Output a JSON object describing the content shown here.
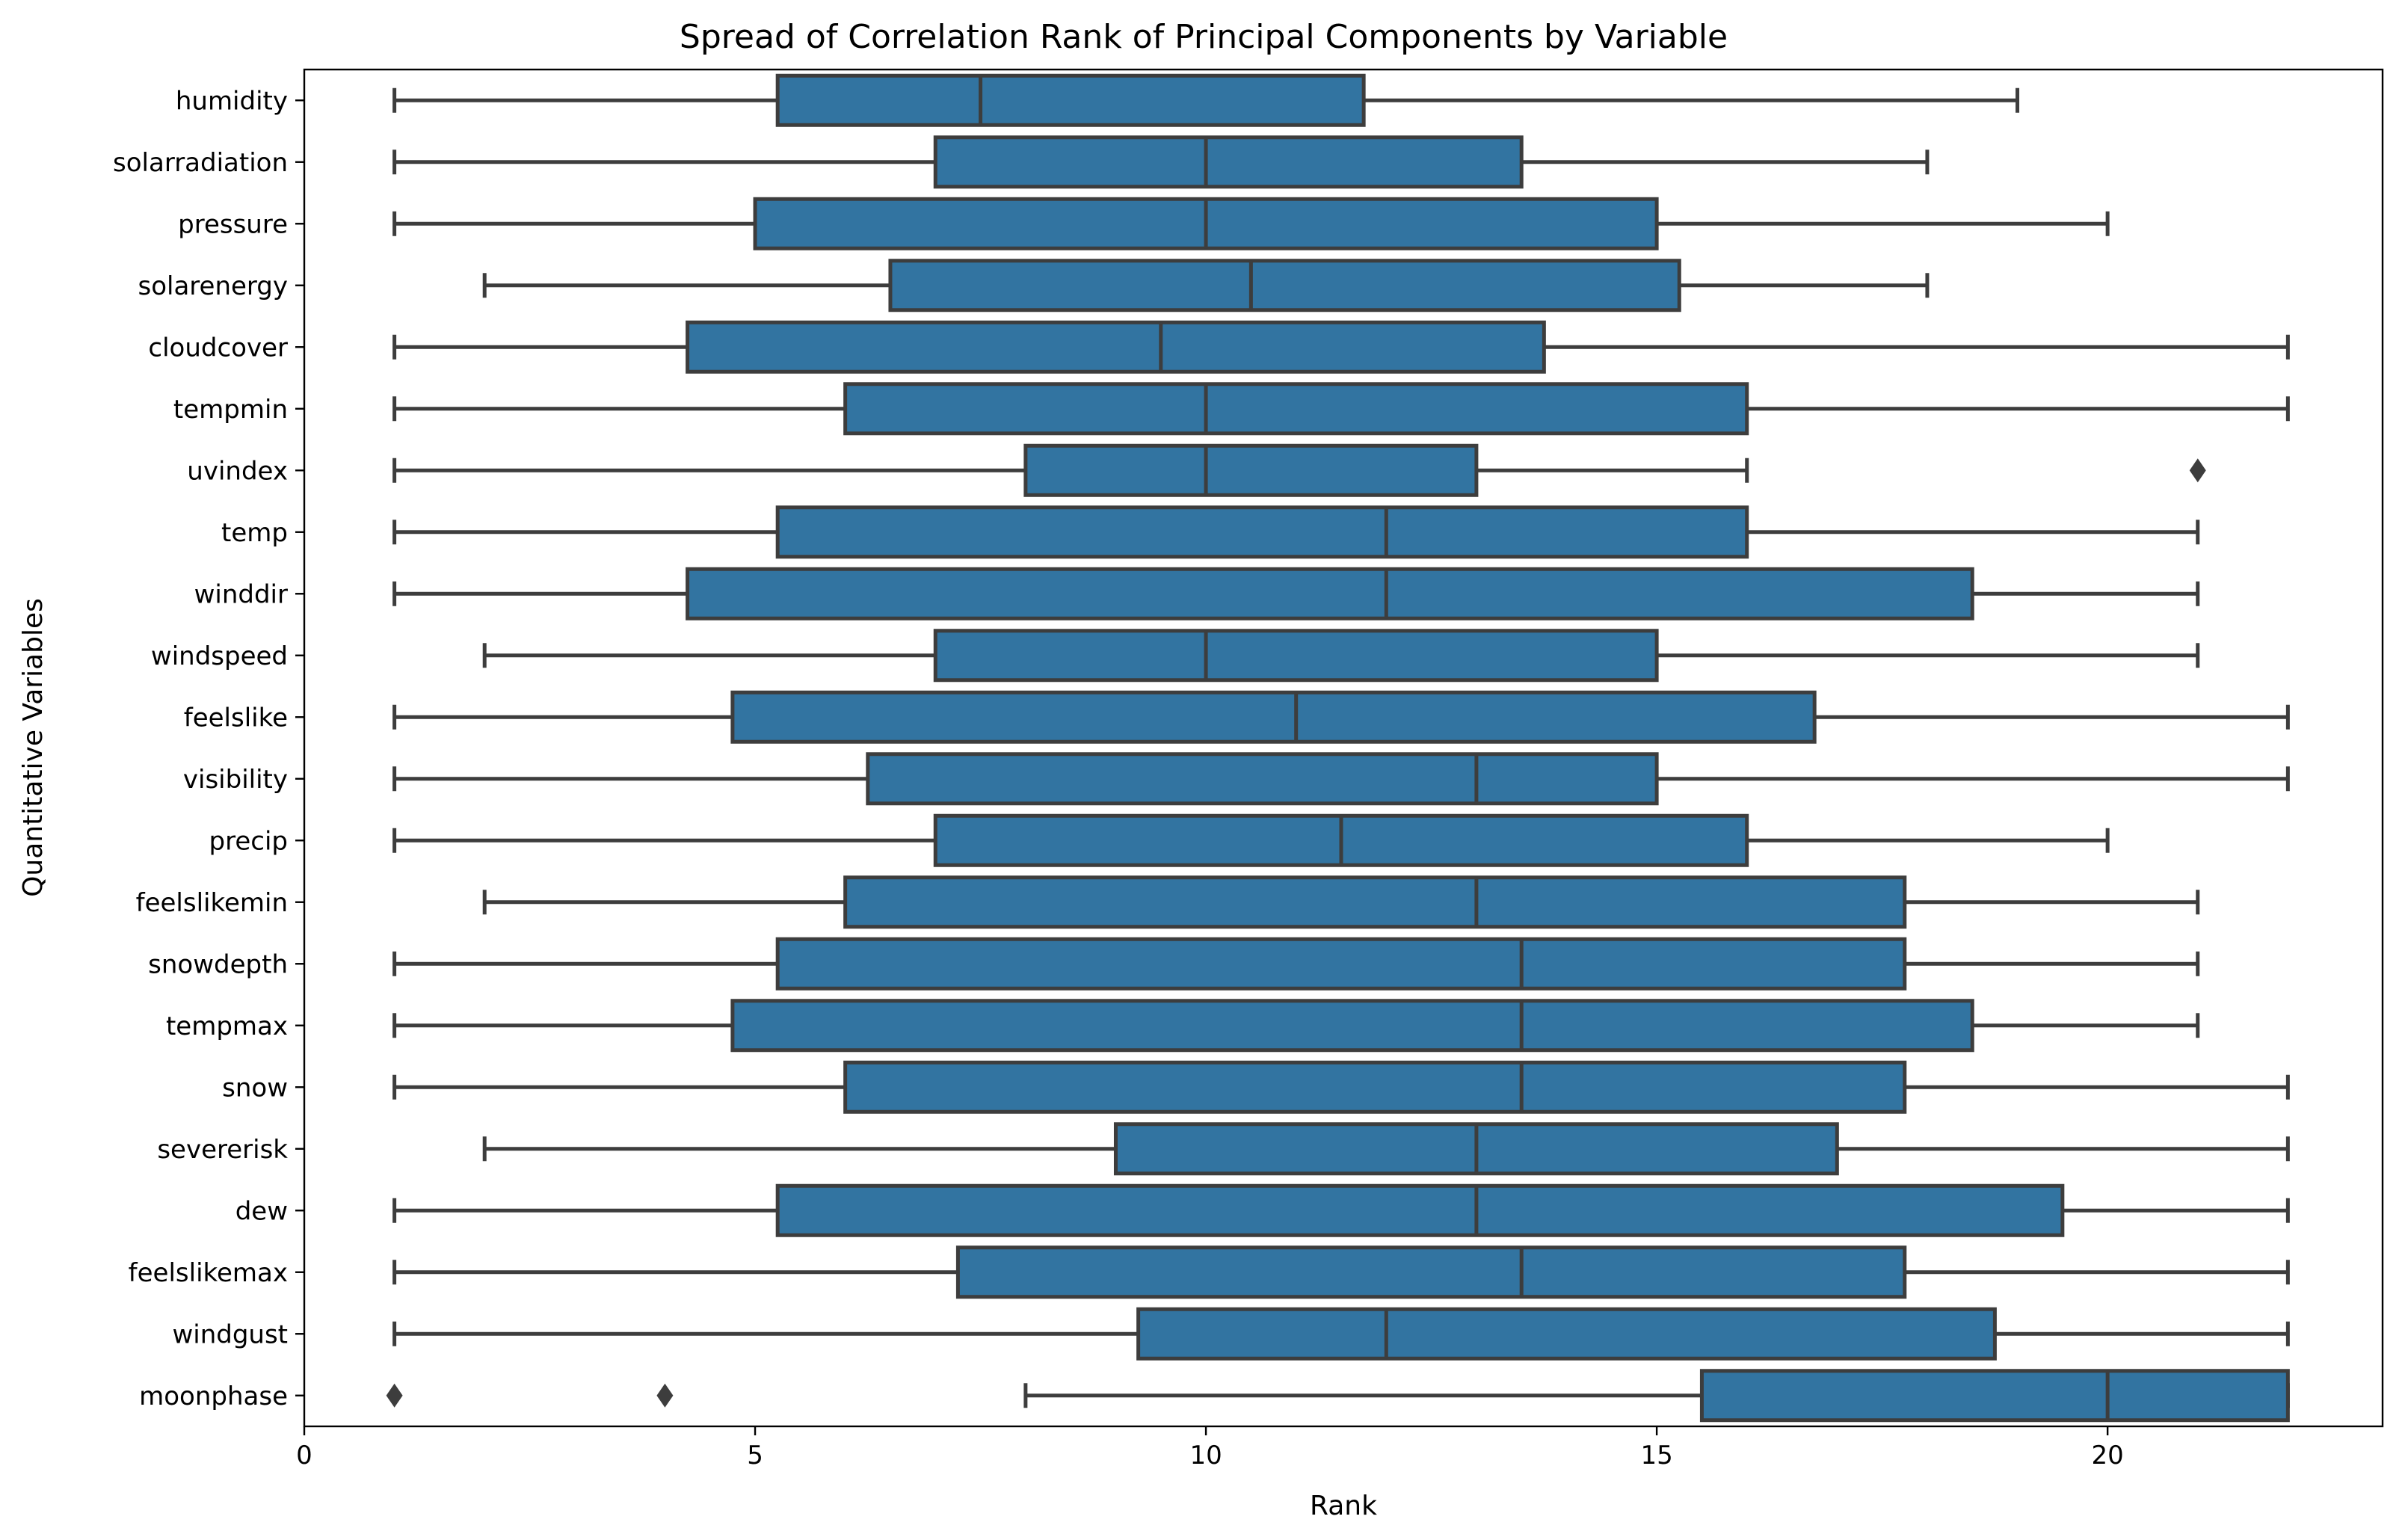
{
  "chart_data": {
    "type": "boxplot",
    "orientation": "horizontal",
    "title": "Spread of Correlation Rank of Principal Components by Variable",
    "xlabel": "Rank",
    "ylabel": "Quantitative Variables",
    "xlim": [
      0,
      23.05
    ],
    "xticks": [
      0,
      5,
      10,
      15,
      20
    ],
    "box_color": "#3274a1",
    "line_color": "#3d3d3d",
    "series": [
      {
        "name": "humidity",
        "whisker_low": 1,
        "q1": 5.25,
        "median": 7.5,
        "q3": 11.75,
        "whisker_high": 19,
        "outliers": []
      },
      {
        "name": "solarradiation",
        "whisker_low": 1,
        "q1": 7,
        "median": 10,
        "q3": 13.5,
        "whisker_high": 18,
        "outliers": []
      },
      {
        "name": "pressure",
        "whisker_low": 1,
        "q1": 5,
        "median": 10,
        "q3": 15,
        "whisker_high": 20,
        "outliers": []
      },
      {
        "name": "solarenergy",
        "whisker_low": 2,
        "q1": 6.5,
        "median": 10.5,
        "q3": 15.25,
        "whisker_high": 18,
        "outliers": []
      },
      {
        "name": "cloudcover",
        "whisker_low": 1,
        "q1": 4.25,
        "median": 9.5,
        "q3": 13.75,
        "whisker_high": 22,
        "outliers": []
      },
      {
        "name": "tempmin",
        "whisker_low": 1,
        "q1": 6,
        "median": 10,
        "q3": 16,
        "whisker_high": 22,
        "outliers": []
      },
      {
        "name": "uvindex",
        "whisker_low": 1,
        "q1": 8,
        "median": 10,
        "q3": 13,
        "whisker_high": 16,
        "outliers": [
          21
        ]
      },
      {
        "name": "temp",
        "whisker_low": 1,
        "q1": 5.25,
        "median": 12,
        "q3": 16,
        "whisker_high": 21,
        "outliers": []
      },
      {
        "name": "winddir",
        "whisker_low": 1,
        "q1": 4.25,
        "median": 12,
        "q3": 18.5,
        "whisker_high": 21,
        "outliers": []
      },
      {
        "name": "windspeed",
        "whisker_low": 2,
        "q1": 7,
        "median": 10,
        "q3": 15,
        "whisker_high": 21,
        "outliers": []
      },
      {
        "name": "feelslike",
        "whisker_low": 1,
        "q1": 4.75,
        "median": 11,
        "q3": 16.75,
        "whisker_high": 22,
        "outliers": []
      },
      {
        "name": "visibility",
        "whisker_low": 1,
        "q1": 6.25,
        "median": 13,
        "q3": 15,
        "whisker_high": 22,
        "outliers": []
      },
      {
        "name": "precip",
        "whisker_low": 1,
        "q1": 7,
        "median": 11.5,
        "q3": 16,
        "whisker_high": 20,
        "outliers": []
      },
      {
        "name": "feelslikemin",
        "whisker_low": 2,
        "q1": 6,
        "median": 13,
        "q3": 17.75,
        "whisker_high": 21,
        "outliers": []
      },
      {
        "name": "snowdepth",
        "whisker_low": 1,
        "q1": 5.25,
        "median": 13.5,
        "q3": 17.75,
        "whisker_high": 21,
        "outliers": []
      },
      {
        "name": "tempmax",
        "whisker_low": 1,
        "q1": 4.75,
        "median": 13.5,
        "q3": 18.5,
        "whisker_high": 21,
        "outliers": []
      },
      {
        "name": "snow",
        "whisker_low": 1,
        "q1": 6,
        "median": 13.5,
        "q3": 17.75,
        "whisker_high": 22,
        "outliers": []
      },
      {
        "name": "severerisk",
        "whisker_low": 2,
        "q1": 9,
        "median": 13,
        "q3": 17,
        "whisker_high": 22,
        "outliers": []
      },
      {
        "name": "dew",
        "whisker_low": 1,
        "q1": 5.25,
        "median": 13,
        "q3": 19.5,
        "whisker_high": 22,
        "outliers": []
      },
      {
        "name": "feelslikemax",
        "whisker_low": 1,
        "q1": 7.25,
        "median": 13.5,
        "q3": 17.75,
        "whisker_high": 22,
        "outliers": []
      },
      {
        "name": "windgust",
        "whisker_low": 1,
        "q1": 9.25,
        "median": 12,
        "q3": 18.75,
        "whisker_high": 22,
        "outliers": []
      },
      {
        "name": "moonphase",
        "whisker_low": 8,
        "q1": 15.5,
        "median": 20,
        "q3": 22,
        "whisker_high": 22,
        "outliers": [
          1,
          4
        ]
      }
    ]
  }
}
